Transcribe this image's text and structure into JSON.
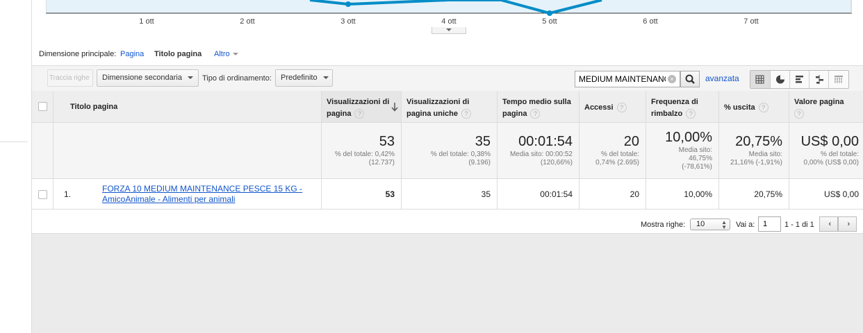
{
  "chart": {
    "x_labels": [
      "1 ott",
      "2 ott",
      "3 ott",
      "4 ott",
      "5 ott",
      "6 ott",
      "7 ott"
    ],
    "line_color": "#058dc7",
    "fill_color": "#e6f2fa"
  },
  "dimensions": {
    "label": "Dimensione principale:",
    "options": [
      "Pagina",
      "Titolo pagina",
      "Altro"
    ],
    "active": "Titolo pagina"
  },
  "toolbar": {
    "plot_rows": "Traccia righe",
    "secondary_dimension": "Dimensione secondaria",
    "sort_label": "Tipo di ordinamento:",
    "sort_value": "Predefinito",
    "search_value": "MEDIUM MAINTENANCE",
    "advanced": "avanzata"
  },
  "table": {
    "headers": {
      "title": "Titolo pagina",
      "pageviews": [
        "Visualizzazioni di",
        "pagina"
      ],
      "unique": [
        "Visualizzazioni di",
        "pagina uniche"
      ],
      "avg_time": [
        "Tempo medio sulla",
        "pagina"
      ],
      "entrances": "Accessi",
      "bounce": [
        "Frequenza di",
        "rimbalzo"
      ],
      "exit": "% uscita",
      "value": "Valore pagina"
    },
    "totals": {
      "pageviews": {
        "big": "53",
        "sub": [
          "% del totale: 0,42%",
          "(12.737)"
        ]
      },
      "unique": {
        "big": "35",
        "sub": [
          "% del totale: 0,38%",
          "(9.196)"
        ]
      },
      "avg_time": {
        "big": "00:01:54",
        "sub": [
          "Media sito: 00:00:52",
          "(120,66%)"
        ]
      },
      "entrances": {
        "big": "20",
        "sub": [
          "% del totale:",
          "0,74% (2.695)"
        ]
      },
      "bounce": {
        "big": "10,00%",
        "sub": [
          "Media sito:",
          "46,75%",
          "(-78,61%)"
        ]
      },
      "exit": {
        "big": "20,75%",
        "sub": [
          "Media sito:",
          "21,16% (-1,91%)"
        ]
      },
      "value": {
        "big": "US$ 0,00",
        "sub": [
          "% del totale:",
          "0,00% (US$ 0,00)"
        ]
      }
    },
    "rows": [
      {
        "index": "1.",
        "title_line1": "FORZA 10 MEDIUM MAINTENANCE PESCE 15 KG -",
        "title_line2": "AmicoAnimale - Alimenti per animali",
        "pageviews": "53",
        "unique": "35",
        "avg_time": "00:01:54",
        "entrances": "20",
        "bounce": "10,00%",
        "exit": "20,75%",
        "value": "US$ 0,00"
      }
    ]
  },
  "pagination": {
    "show_rows_label": "Mostra righe:",
    "show_rows_value": "10",
    "goto_label": "Vai a:",
    "goto_value": "1",
    "range": "1 - 1 di 1"
  },
  "icons": [
    "sort-desc-icon",
    "help-icon",
    "search-icon",
    "clear-icon",
    "table-view-icon",
    "pie-view-icon",
    "bar-view-icon",
    "comparison-view-icon",
    "pivot-view-icon",
    "prev-page-icon",
    "next-page-icon"
  ]
}
